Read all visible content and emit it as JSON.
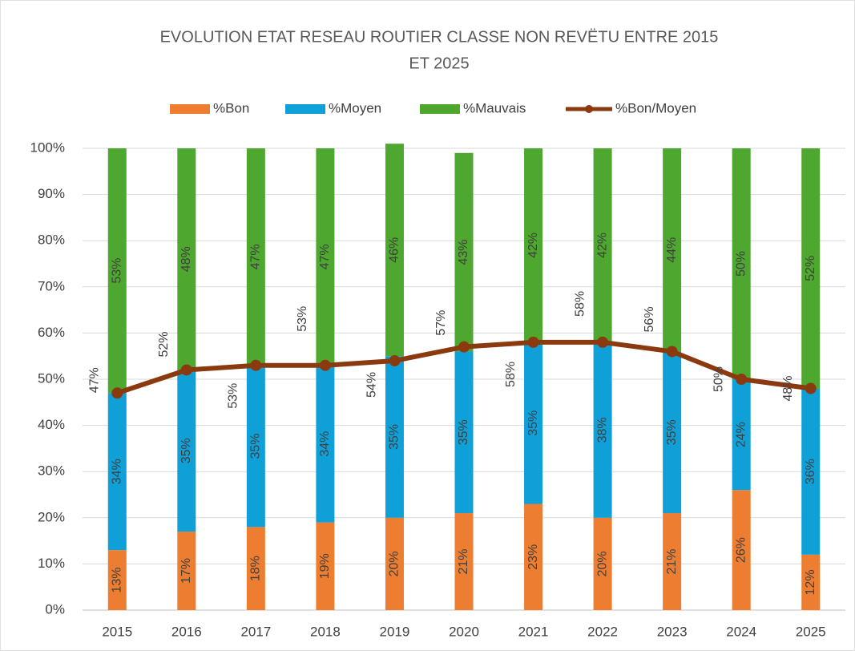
{
  "chart_data": {
    "type": "bar",
    "stacked": true,
    "title": [
      "EVOLUTION ETAT RESEAU ROUTIER CLASSE NON REVËTU ENTRE 2015",
      "ET 2025"
    ],
    "categories": [
      "2015",
      "2016",
      "2017",
      "2018",
      "2019",
      "2020",
      "2021",
      "2022",
      "2023",
      "2024",
      "2025"
    ],
    "series": [
      {
        "name": "%Bon",
        "color": "#ed7d31",
        "type": "bar",
        "values": [
          13,
          17,
          18,
          19,
          20,
          21,
          23,
          20,
          21,
          26,
          12
        ],
        "value_labels": [
          "13%",
          "17%",
          "18%",
          "19%",
          "20%",
          "21%",
          "23%",
          "20%",
          "21%",
          "26%",
          "12%"
        ]
      },
      {
        "name": "%Moyen",
        "color": "#0fa0d8",
        "type": "bar",
        "values": [
          34,
          35,
          35,
          34,
          35,
          35,
          35,
          38,
          35,
          24,
          36
        ],
        "value_labels": [
          "34%",
          "35%",
          "35%",
          "34%",
          "35%",
          "35%",
          "35%",
          "38%",
          "35%",
          "24%",
          "36%"
        ]
      },
      {
        "name": "%Mauvais",
        "color": "#4ea72e",
        "type": "bar",
        "values": [
          53,
          48,
          47,
          47,
          46,
          43,
          42,
          42,
          44,
          50,
          52
        ],
        "value_labels": [
          "53%",
          "48%",
          "47%",
          "47%",
          "46%",
          "43%",
          "42%",
          "42%",
          "44%",
          "50%",
          "52%"
        ]
      },
      {
        "name": "%Bon/Moyen",
        "color": "#8b3a0f",
        "type": "line",
        "values": [
          47,
          52,
          53,
          53,
          54,
          57,
          58,
          58,
          56,
          50,
          48
        ],
        "value_labels": [
          "47%",
          "52%",
          "53%",
          "53%",
          "54%",
          "57%",
          "58%",
          "58%",
          "56%",
          "50%",
          "48%"
        ]
      }
    ],
    "ylim": [
      0,
      100
    ],
    "yticks": [
      {
        "value": 0,
        "label": "0%"
      },
      {
        "value": 10,
        "label": "10%"
      },
      {
        "value": 20,
        "label": "20%"
      },
      {
        "value": 30,
        "label": "30%"
      },
      {
        "value": 40,
        "label": "40%"
      },
      {
        "value": 50,
        "label": "50%"
      },
      {
        "value": 60,
        "label": "60%"
      },
      {
        "value": 70,
        "label": "70%"
      },
      {
        "value": 80,
        "label": "80%"
      },
      {
        "value": 90,
        "label": "90%"
      },
      {
        "value": 100,
        "label": "100%"
      }
    ],
    "grid": true,
    "legend": "top"
  }
}
